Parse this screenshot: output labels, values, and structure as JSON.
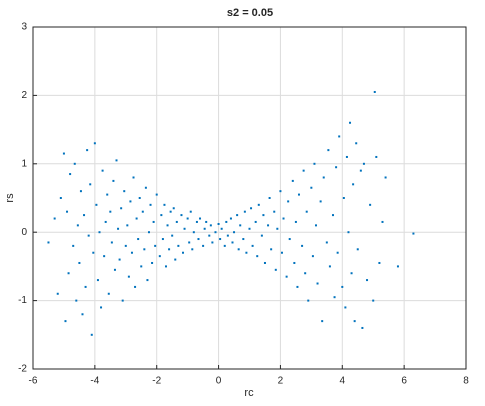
{
  "chart_data": {
    "type": "scatter",
    "title": "s2 = 0.05",
    "xlabel": "rc",
    "ylabel": "rs",
    "color": "#0072bd",
    "grid": true,
    "xlim": [
      -6,
      8
    ],
    "xticks": [
      -6,
      -4,
      -2,
      0,
      2,
      4,
      6,
      8
    ],
    "ylim": [
      -2,
      3
    ],
    "yticks": [
      -2,
      -1,
      0,
      1,
      2,
      3
    ],
    "x": [
      -5.5,
      -5.3,
      -5.2,
      -5.1,
      -5.0,
      -4.95,
      -4.9,
      -4.85,
      -4.8,
      -4.7,
      -4.65,
      -4.6,
      -4.55,
      -4.5,
      -4.45,
      -4.4,
      -4.35,
      -4.3,
      -4.25,
      -4.2,
      -4.15,
      -4.1,
      -4.05,
      -4.0,
      -3.95,
      -3.9,
      -3.85,
      -3.8,
      -3.75,
      -3.7,
      -3.65,
      -3.6,
      -3.55,
      -3.5,
      -3.45,
      -3.4,
      -3.35,
      -3.3,
      -3.25,
      -3.2,
      -3.15,
      -3.1,
      -3.05,
      -3.0,
      -2.95,
      -2.9,
      -2.85,
      -2.8,
      -2.75,
      -2.7,
      -2.65,
      -2.6,
      -2.55,
      -2.5,
      -2.45,
      -2.4,
      -2.35,
      -2.3,
      -2.25,
      -2.2,
      -2.15,
      -2.1,
      -2.05,
      -2.0,
      -1.9,
      -1.85,
      -1.8,
      -1.75,
      -1.7,
      -1.65,
      -1.6,
      -1.55,
      -1.5,
      -1.45,
      -1.4,
      -1.35,
      -1.3,
      -1.2,
      -1.15,
      -1.1,
      -1.0,
      -0.95,
      -0.9,
      -0.85,
      -0.8,
      -0.7,
      -0.65,
      -0.6,
      -0.5,
      -0.45,
      -0.4,
      -0.3,
      -0.25,
      -0.2,
      -0.1,
      0.0,
      0.05,
      0.1,
      0.2,
      0.25,
      0.3,
      0.4,
      0.45,
      0.5,
      0.6,
      0.65,
      0.7,
      0.8,
      0.85,
      0.9,
      1.0,
      1.05,
      1.1,
      1.2,
      1.25,
      1.3,
      1.4,
      1.45,
      1.5,
      1.6,
      1.65,
      1.7,
      1.8,
      1.85,
      1.9,
      2.0,
      2.05,
      2.1,
      2.2,
      2.25,
      2.3,
      2.4,
      2.45,
      2.5,
      2.55,
      2.6,
      2.7,
      2.75,
      2.8,
      2.85,
      2.9,
      3.0,
      3.05,
      3.1,
      3.15,
      3.2,
      3.3,
      3.35,
      3.4,
      3.5,
      3.55,
      3.6,
      3.7,
      3.75,
      3.8,
      3.85,
      3.9,
      4.0,
      4.05,
      4.1,
      4.15,
      4.2,
      4.25,
      4.3,
      4.35,
      4.4,
      4.45,
      4.5,
      4.6,
      4.65,
      4.7,
      4.8,
      4.9,
      5.0,
      5.05,
      5.1,
      5.2,
      5.3,
      5.4,
      5.8,
      6.3
    ],
    "y": [
      -0.15,
      0.2,
      -0.9,
      0.5,
      1.15,
      -1.3,
      0.3,
      -0.6,
      0.85,
      -0.2,
      1.0,
      -1.0,
      0.1,
      -0.45,
      0.6,
      -1.2,
      0.25,
      -0.8,
      1.2,
      -0.05,
      0.7,
      -1.5,
      -0.3,
      1.3,
      0.4,
      -0.7,
      0.0,
      -1.1,
      0.9,
      -0.35,
      0.15,
      0.55,
      -0.9,
      0.3,
      -0.15,
      0.75,
      -0.55,
      1.05,
      0.05,
      -0.4,
      0.35,
      -1.0,
      0.6,
      -0.2,
      0.1,
      -0.65,
      0.45,
      -0.3,
      0.8,
      -0.8,
      0.2,
      -0.1,
      0.5,
      -0.5,
      0.3,
      -0.25,
      0.65,
      -0.7,
      0.0,
      0.4,
      -0.45,
      0.15,
      -0.2,
      0.55,
      -0.35,
      0.25,
      -0.1,
      0.4,
      -0.5,
      0.1,
      -0.25,
      0.3,
      -0.05,
      0.35,
      -0.4,
      0.15,
      -0.2,
      0.25,
      -0.3,
      0.05,
      0.2,
      -0.15,
      0.3,
      -0.25,
      0.0,
      0.15,
      -0.1,
      0.2,
      -0.2,
      0.05,
      0.15,
      -0.05,
      0.1,
      -0.15,
      0.0,
      0.12,
      -0.1,
      0.05,
      -0.2,
      0.15,
      -0.05,
      0.2,
      -0.15,
      0.0,
      0.25,
      -0.25,
      0.1,
      -0.1,
      0.3,
      -0.3,
      0.05,
      0.35,
      -0.2,
      0.15,
      -0.35,
      0.4,
      -0.05,
      0.25,
      -0.45,
      0.1,
      0.5,
      -0.25,
      0.3,
      -0.55,
      0.05,
      0.6,
      -0.3,
      0.2,
      -0.65,
      0.45,
      -0.1,
      0.75,
      -0.45,
      0.15,
      -0.8,
      0.55,
      -0.2,
      0.9,
      -0.6,
      0.3,
      -1.0,
      0.65,
      -0.35,
      1.0,
      0.1,
      -0.75,
      0.45,
      -1.3,
      0.8,
      -0.15,
      1.2,
      -0.5,
      0.25,
      -0.95,
      0.95,
      -0.3,
      1.4,
      -0.8,
      0.5,
      -1.1,
      1.1,
      0.0,
      1.6,
      -0.6,
      0.7,
      -1.3,
      1.3,
      -0.25,
      0.9,
      -1.4,
      1.0,
      -0.7,
      0.4,
      -1.0,
      2.05,
      1.1,
      -0.45,
      0.15,
      0.8,
      -0.5,
      -0.02
    ]
  }
}
